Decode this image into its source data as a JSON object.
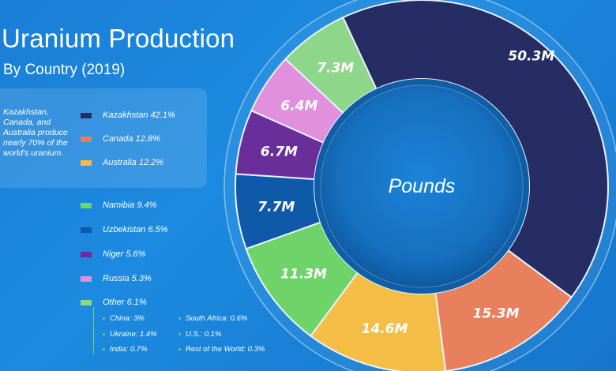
{
  "title": "Uranium Production",
  "subtitle": "By Country (2019)",
  "note": "Kazakhstan, Canada, and Australia produce nearly 70% of the world's uranium.",
  "center_label": "Pounds",
  "legend": [
    {
      "label": "Kazakhstan 42.1%",
      "color": "#262c64"
    },
    {
      "label": "Canada 12.8%",
      "color": "#e8805e"
    },
    {
      "label": "Australia 12.2%",
      "color": "#f4be46"
    },
    {
      "label": "Namibia 9.4%",
      "color": "#6ed46a"
    },
    {
      "label": "Uzbekistan 6.5%",
      "color": "#0e5aa8"
    },
    {
      "label": "Niger 5.6%",
      "color": "#6a2e9a"
    },
    {
      "label": "Russia 5.3%",
      "color": "#e090dc"
    },
    {
      "label": "Other 6.1%",
      "color": "#8ed68a"
    }
  ],
  "other_breakdown": [
    "China: 3%",
    "Ukraine: 1.4%",
    "India: 0.7%",
    "South Africa: 0.6%",
    "U.S.: 0.1%",
    "Rest of the World: 0.3%"
  ],
  "chart_data": {
    "type": "pie",
    "unit": "Pounds",
    "slices": [
      {
        "name": "Kazakhstan",
        "percent": 42.1,
        "value": 50.3,
        "label": "50.3M",
        "color": "#262c64"
      },
      {
        "name": "Canada",
        "percent": 12.8,
        "value": 15.3,
        "label": "15.3M",
        "color": "#e8805e"
      },
      {
        "name": "Australia",
        "percent": 12.2,
        "value": 14.6,
        "label": "14.6M",
        "color": "#f4be46"
      },
      {
        "name": "Namibia",
        "percent": 9.4,
        "value": 11.3,
        "label": "11.3M",
        "color": "#6ed46a"
      },
      {
        "name": "Uzbekistan",
        "percent": 6.5,
        "value": 7.7,
        "label": "7.7M",
        "color": "#0e5aa8"
      },
      {
        "name": "Niger",
        "percent": 5.6,
        "value": 6.7,
        "label": "6.7M",
        "color": "#6a2e9a"
      },
      {
        "name": "Russia",
        "percent": 5.3,
        "value": 6.4,
        "label": "6.4M",
        "color": "#e090dc"
      },
      {
        "name": "Other",
        "percent": 6.1,
        "value": 7.3,
        "label": "7.3M",
        "color": "#8ed68a"
      }
    ]
  }
}
